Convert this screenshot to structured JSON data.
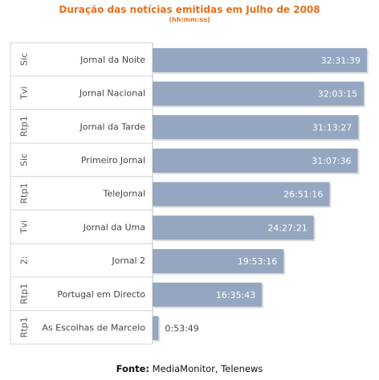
{
  "header": {
    "title": "Duração das notícias emitidas em Julho de 2008",
    "subtitle": "(hh:mm:ss)"
  },
  "footer": {
    "source_label": "Fonte:",
    "source_value": "MediaMonitor, Telenews"
  },
  "colors": {
    "title": "#e8701d",
    "bar": "#95a7c0",
    "bar_text": "#ffffff",
    "grid": "#d6d6d6"
  },
  "chart_data": {
    "type": "bar",
    "orientation": "horizontal",
    "title": "Duração das notícias emitidas em Julho de 2008",
    "subtitle": "(hh:mm:ss)",
    "categories": [
      {
        "channel": "Sic",
        "program": "Jornal da Noite"
      },
      {
        "channel": "Tvi",
        "program": "Jornal Nacional"
      },
      {
        "channel": "Rtp1",
        "program": "Jornal da Tarde"
      },
      {
        "channel": "Sic",
        "program": "Primeiro Jornal"
      },
      {
        "channel": "Rtp1",
        "program": "TeleJornal"
      },
      {
        "channel": "Tvi",
        "program": "Jornal da Uma"
      },
      {
        "channel": "2:",
        "program": "Jornal 2"
      },
      {
        "channel": "Rtp1",
        "program": "Portugal em Directo"
      },
      {
        "channel": "Rtp1",
        "program": "As Escolhas de Marcelo"
      }
    ],
    "labels": [
      "32:31:39",
      "32:03:15",
      "31:13:27",
      "31:07:36",
      "26:51:16",
      "24:27:21",
      "19:53:16",
      "16:35:43",
      "0:53:49"
    ],
    "values_seconds": [
      117099,
      115395,
      112407,
      112056,
      96676,
      88041,
      71596,
      59743,
      3229
    ],
    "xlim": [
      0,
      117099
    ],
    "grid": true
  }
}
